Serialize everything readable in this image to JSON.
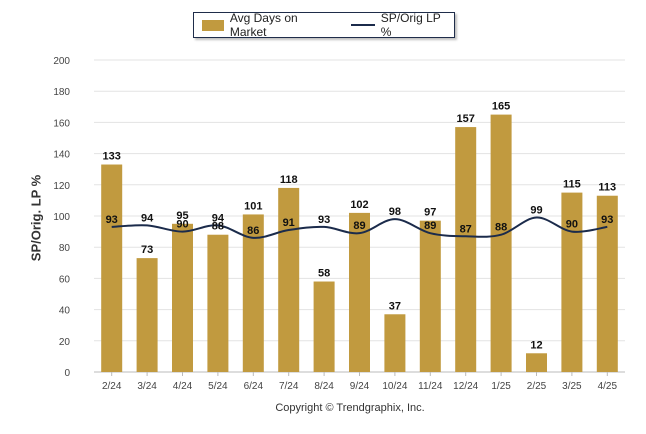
{
  "chart_data": {
    "type": "bar",
    "categories": [
      "2/24",
      "3/24",
      "4/24",
      "5/24",
      "6/24",
      "7/24",
      "8/24",
      "9/24",
      "10/24",
      "11/24",
      "12/24",
      "1/25",
      "2/25",
      "3/25",
      "4/25"
    ],
    "series": [
      {
        "name": "Avg Days on Market",
        "type": "bar",
        "values": [
          133,
          73,
          95,
          88,
          101,
          118,
          58,
          102,
          37,
          97,
          157,
          165,
          12,
          115,
          113
        ],
        "labels": [
          "133",
          "73",
          "95",
          "88",
          "101",
          "118",
          "58",
          "102",
          "37",
          "97",
          "157",
          "165",
          "12",
          "115",
          "113"
        ],
        "color": "#c19a3f"
      },
      {
        "name": "SP/Orig LP %",
        "type": "line",
        "values": [
          93,
          94,
          90,
          94,
          86,
          91,
          93,
          89,
          98,
          89,
          87,
          88,
          99,
          90,
          93
        ],
        "labels": [
          "93",
          "94",
          "90",
          "94",
          "86",
          "91",
          "93",
          "89",
          "98",
          "89",
          "87",
          "88",
          "99",
          "90",
          "93"
        ],
        "color": "#1b2b4b"
      }
    ],
    "ylabel": "SP/Orig. LP %",
    "ylim": [
      0,
      200
    ],
    "yticks": [
      "0",
      "20",
      "40",
      "60",
      "80",
      "100",
      "120",
      "140",
      "160",
      "180",
      "200"
    ],
    "legend_position": "top-center",
    "grid": true
  },
  "footer": {
    "copyright": "Copyright © Trendgraphix, Inc."
  }
}
